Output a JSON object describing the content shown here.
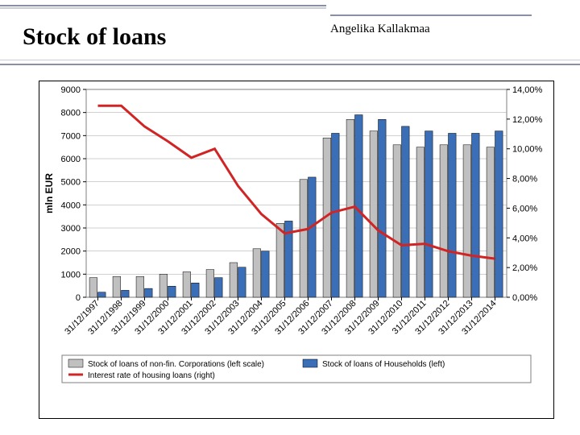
{
  "header": {
    "title": "Stock of loans",
    "title_fontsize": 30,
    "author": "Angelika Kallakmaa",
    "author_fontsize": 15,
    "rule_color_dark": "#8a8fa6",
    "rule_color_light": "#c9cdd8"
  },
  "chart": {
    "type": "bar+line",
    "background": "#ffffff",
    "plot_border_color": "#7f7f7f",
    "grid_color": "#a0a0a0",
    "xlabel_rotation": -45,
    "ylabel_left": "mln EUR",
    "ylabel_left_fontsize": 12,
    "left_axis": {
      "min": 0,
      "max": 9000,
      "step": 1000
    },
    "right_axis": {
      "min": 0,
      "max": 14,
      "step": 2,
      "format": "pct2"
    },
    "categories": [
      "31/12/1997",
      "31/12/1998",
      "31/12/1999",
      "31/12/2000",
      "31/12/2001",
      "31/12/2002",
      "31/12/2003",
      "31/12/2004",
      "31/12/2005",
      "31/12/2006",
      "31/12/2007",
      "31/12/2008",
      "31/12/2009",
      "31/12/2010",
      "31/12/2011",
      "31/12/2012",
      "31/12/2013",
      "31/12/2014"
    ],
    "series_bars": [
      {
        "name": "Stock of loans of non-fin. Corporations (left scale)",
        "color": "#c0c0c0",
        "values": [
          850,
          900,
          900,
          1000,
          1100,
          1200,
          1500,
          2100,
          3200,
          5100,
          6900,
          7700,
          7200,
          6600,
          6500,
          6600,
          6600,
          6500
        ]
      },
      {
        "name": "Stock of loans of Households (left)",
        "color": "#3a6fb7",
        "values": [
          220,
          300,
          380,
          480,
          620,
          850,
          1300,
          2000,
          3300,
          5200,
          7100,
          7900,
          7700,
          7400,
          7200,
          7100,
          7100,
          7200
        ]
      }
    ],
    "series_line": {
      "name": "Interest rate of housing loans (right)",
      "color": "#d12424",
      "width": 3,
      "values": [
        12.9,
        12.9,
        11.5,
        10.5,
        9.4,
        10.0,
        7.5,
        5.6,
        4.3,
        4.6,
        5.7,
        6.1,
        4.5,
        3.5,
        3.6,
        3.1,
        2.8,
        2.6
      ]
    },
    "bar_group_width": 0.72,
    "legend": {
      "border_color": "#7f7f7f",
      "items": [
        {
          "swatch": "#c0c0c0",
          "type": "rect",
          "label": "Stock of loans of non-fin. Corporations (left scale)"
        },
        {
          "swatch": "#3a6fb7",
          "type": "rect",
          "label": "Stock of loans of Households (left)"
        },
        {
          "swatch": "#d12424",
          "type": "line",
          "label": "Interest rate of housing loans (right)"
        }
      ]
    }
  }
}
